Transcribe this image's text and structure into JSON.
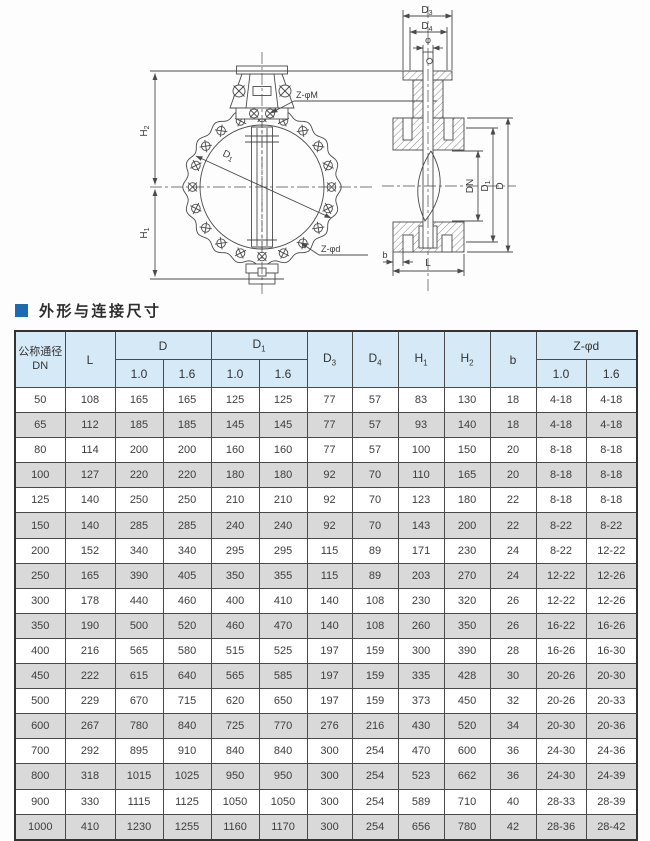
{
  "section": {
    "title": "外形与连接尺寸"
  },
  "colors": {
    "accent_blue": "#1c6bb0",
    "header_bg": "#d6e9f7",
    "row_alt_bg": "#d9d9d9"
  },
  "diagram": {
    "front": {
      "h2": {
        "base": "H",
        "sub": "2"
      },
      "h1": {
        "base": "H",
        "sub": "1"
      },
      "d1": {
        "base": "D",
        "sub": "1"
      },
      "z_phi_m": "Z-φM",
      "z_phi_d": "Z-φd"
    },
    "side": {
      "d3": {
        "base": "D",
        "sub": "3"
      },
      "d4": {
        "base": "D",
        "sub": "4"
      },
      "phi": "φ",
      "dn": "DN",
      "d1": {
        "base": "D",
        "sub": "1"
      },
      "d": "D",
      "b": "b",
      "l": "L"
    }
  },
  "table": {
    "header": {
      "dn_line1": "公称通径",
      "dn_line2": "DN",
      "l": "L",
      "d": "D",
      "d1": {
        "base": "D",
        "sub": "1"
      },
      "d3": {
        "base": "D",
        "sub": "3"
      },
      "d4": {
        "base": "D",
        "sub": "4"
      },
      "h1": {
        "base": "H",
        "sub": "1"
      },
      "h2": {
        "base": "H",
        "sub": "2"
      },
      "b": "b",
      "z_phi_d": "Z-φd",
      "pn_low": "1.0",
      "pn_high": "1.6"
    },
    "rows": [
      [
        "50",
        "108",
        "165",
        "165",
        "125",
        "125",
        "77",
        "57",
        "83",
        "130",
        "18",
        "4-18",
        "4-18"
      ],
      [
        "65",
        "112",
        "185",
        "185",
        "145",
        "145",
        "77",
        "57",
        "93",
        "140",
        "18",
        "4-18",
        "4-18"
      ],
      [
        "80",
        "114",
        "200",
        "200",
        "160",
        "160",
        "77",
        "57",
        "100",
        "150",
        "20",
        "8-18",
        "8-18"
      ],
      [
        "100",
        "127",
        "220",
        "220",
        "180",
        "180",
        "92",
        "70",
        "110",
        "165",
        "20",
        "8-18",
        "8-18"
      ],
      [
        "125",
        "140",
        "250",
        "250",
        "210",
        "210",
        "92",
        "70",
        "123",
        "180",
        "22",
        "8-18",
        "8-18"
      ],
      [
        "150",
        "140",
        "285",
        "285",
        "240",
        "240",
        "92",
        "70",
        "143",
        "200",
        "22",
        "8-22",
        "8-22"
      ],
      [
        "200",
        "152",
        "340",
        "340",
        "295",
        "295",
        "115",
        "89",
        "171",
        "230",
        "24",
        "8-22",
        "12-22"
      ],
      [
        "250",
        "165",
        "390",
        "405",
        "350",
        "355",
        "115",
        "89",
        "203",
        "270",
        "24",
        "12-22",
        "12-26"
      ],
      [
        "300",
        "178",
        "440",
        "460",
        "400",
        "410",
        "140",
        "108",
        "230",
        "320",
        "26",
        "12-22",
        "12-26"
      ],
      [
        "350",
        "190",
        "500",
        "520",
        "460",
        "470",
        "140",
        "108",
        "260",
        "350",
        "26",
        "16-22",
        "16-26"
      ],
      [
        "400",
        "216",
        "565",
        "580",
        "515",
        "525",
        "197",
        "159",
        "300",
        "390",
        "28",
        "16-26",
        "16-30"
      ],
      [
        "450",
        "222",
        "615",
        "640",
        "565",
        "585",
        "197",
        "159",
        "335",
        "428",
        "30",
        "20-26",
        "20-30"
      ],
      [
        "500",
        "229",
        "670",
        "715",
        "620",
        "650",
        "197",
        "159",
        "373",
        "450",
        "32",
        "20-26",
        "20-33"
      ],
      [
        "600",
        "267",
        "780",
        "840",
        "725",
        "770",
        "276",
        "216",
        "430",
        "520",
        "34",
        "20-30",
        "20-36"
      ],
      [
        "700",
        "292",
        "895",
        "910",
        "840",
        "840",
        "300",
        "254",
        "470",
        "600",
        "36",
        "24-30",
        "24-36"
      ],
      [
        "800",
        "318",
        "1015",
        "1025",
        "950",
        "950",
        "300",
        "254",
        "523",
        "662",
        "36",
        "24-30",
        "24-39"
      ],
      [
        "900",
        "330",
        "1115",
        "1125",
        "1050",
        "1050",
        "300",
        "254",
        "589",
        "710",
        "40",
        "28-33",
        "28-39"
      ],
      [
        "1000",
        "410",
        "1230",
        "1255",
        "1160",
        "1170",
        "300",
        "254",
        "656",
        "780",
        "42",
        "28-36",
        "28-42"
      ]
    ]
  }
}
